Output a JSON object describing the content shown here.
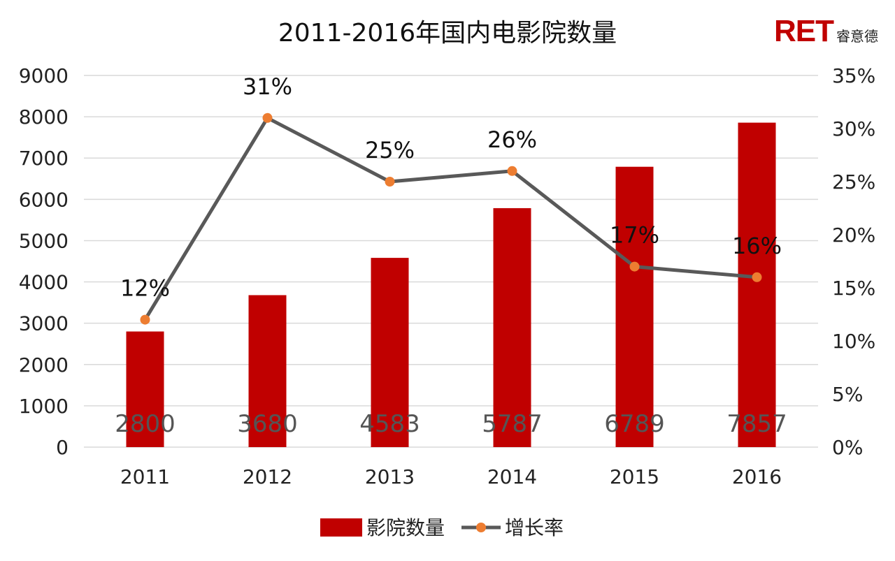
{
  "title": "2011-2016年国内电影院数量",
  "brand": {
    "mark": "RET",
    "text": "睿意德",
    "color": "#c00000"
  },
  "chart_data": {
    "type": "bar",
    "categories": [
      "2011",
      "2012",
      "2013",
      "2014",
      "2015",
      "2016"
    ],
    "series": [
      {
        "name": "影院数量",
        "type": "bar",
        "axis": "left",
        "values": [
          2800,
          3680,
          4583,
          5787,
          6789,
          7857
        ],
        "labels": [
          "2800",
          "3680",
          "4583",
          "5787",
          "6789",
          "7857"
        ],
        "color": "#c00000"
      },
      {
        "name": "增长率",
        "type": "line",
        "axis": "right",
        "values": [
          12,
          31,
          25,
          26,
          17,
          16
        ],
        "labels": [
          "12%",
          "31%",
          "25%",
          "26%",
          "17%",
          "16%"
        ],
        "color": "#595959",
        "marker_color": "#ed7d31"
      }
    ],
    "y_left": {
      "min": 0,
      "max": 9000,
      "ticks": [
        "0",
        "1000",
        "2000",
        "3000",
        "4000",
        "5000",
        "6000",
        "7000",
        "8000",
        "9000"
      ]
    },
    "y_right": {
      "min": 0,
      "max": 35,
      "ticks": [
        "0%",
        "5%",
        "10%",
        "15%",
        "20%",
        "25%",
        "30%",
        "35%"
      ]
    },
    "grid": true,
    "legend_position": "bottom"
  }
}
